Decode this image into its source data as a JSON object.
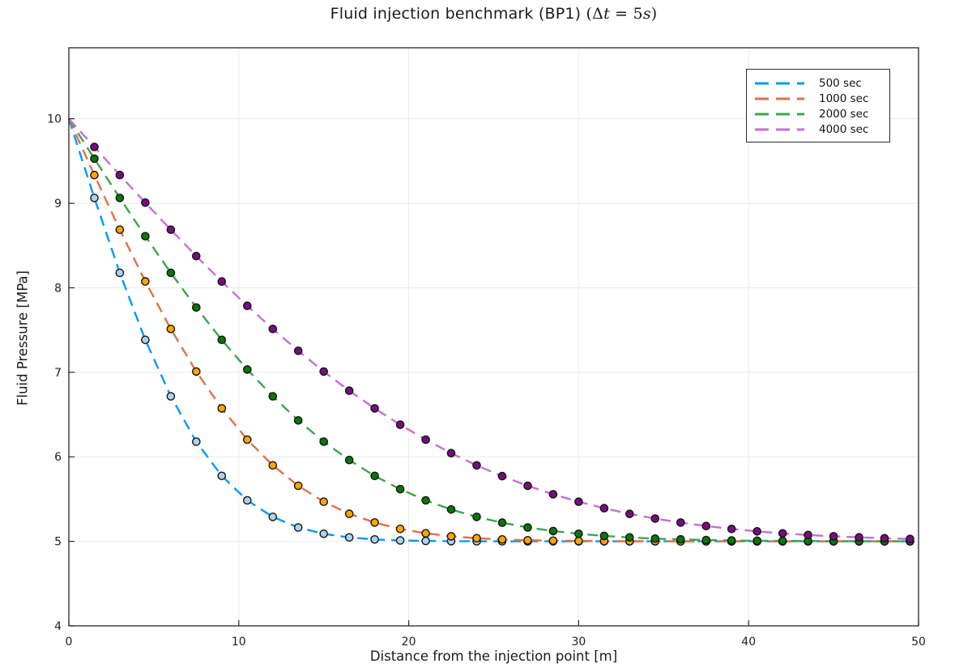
{
  "title": {
    "main": "Fluid injection benchmark (BP1) ",
    "math_parts": [
      "(Δ",
      "t",
      " = 5",
      "s",
      ")"
    ]
  },
  "axes": {
    "xlabel": "Distance from the injection point [m]",
    "ylabel": "Fluid Pressure [MPa]"
  },
  "chart_data": {
    "type": "line",
    "title": "Fluid injection benchmark (BP1) (Δt = 5s)",
    "xlabel": "Distance from the injection point [m]",
    "ylabel": "Fluid Pressure [MPa]",
    "xlim": [
      0,
      50
    ],
    "ylim": [
      4,
      10.84
    ],
    "x_ticks": [
      0,
      10,
      20,
      30,
      40,
      50
    ],
    "y_ticks": [
      4,
      5,
      6,
      7,
      8,
      9,
      10
    ],
    "grid": true,
    "legend_position": "top-right",
    "line_style": "dashed",
    "marker": "circle",
    "x": [
      0,
      1.5,
      3,
      4.5,
      6,
      7.5,
      9,
      10.5,
      12,
      13.5,
      15,
      16.5,
      18,
      19.5,
      21,
      22.5,
      24,
      25.5,
      27,
      28.5,
      30,
      31.5,
      33,
      34.5,
      36,
      37.5,
      39,
      40.5,
      42,
      43.5,
      45,
      46.5,
      48,
      49.5
    ],
    "series": [
      {
        "name": "500 sec",
        "line_color": "#009AFA",
        "marker_color": "#A9D3F0",
        "values": [
          10,
          9.063,
          8.177,
          7.384,
          6.716,
          6.179,
          5.774,
          5.485,
          5.289,
          5.164,
          5.089,
          5.046,
          5.022,
          5.011,
          5.005,
          5.002,
          5.001,
          5.0,
          5.0,
          5.0,
          5.0,
          5.0,
          5.0,
          5.0,
          5.0,
          5.0,
          5.0,
          5.0,
          5.0,
          5.0,
          5.0,
          5.0,
          5.0,
          5.0
        ]
      },
      {
        "name": "1000 sec",
        "line_color": "#E36F47",
        "marker_color": "#FFA500",
        "values": [
          10,
          9.334,
          8.687,
          8.075,
          7.513,
          7.009,
          6.573,
          6.203,
          5.899,
          5.657,
          5.469,
          5.326,
          5.222,
          5.147,
          5.095,
          5.06,
          5.037,
          5.022,
          5.013,
          5.008,
          5.004,
          5.002,
          5.001,
          5.001,
          5.0,
          5.0,
          5.0,
          5.0,
          5.0,
          5.0,
          5.0,
          5.0,
          5.0,
          5.0
        ]
      },
      {
        "name": "2000 sec",
        "line_color": "#3DA44E",
        "marker_color": "#077807",
        "values": [
          10,
          9.528,
          9.063,
          8.61,
          8.177,
          7.767,
          7.384,
          7.033,
          6.716,
          6.43,
          6.179,
          5.962,
          5.774,
          5.617,
          5.485,
          5.377,
          5.289,
          5.22,
          5.164,
          5.122,
          5.089,
          5.064,
          5.046,
          5.032,
          5.023,
          5.015,
          5.011,
          5.007,
          5.005,
          5.003,
          5.002,
          5.001,
          5.001,
          5.0
        ]
      },
      {
        "name": "4000 sec",
        "line_color": "#C371D2",
        "marker_color": "#770D80",
        "values": [
          10,
          9.666,
          9.334,
          9.007,
          8.687,
          8.375,
          8.074,
          7.787,
          7.513,
          7.254,
          7.009,
          6.782,
          6.573,
          6.38,
          6.203,
          6.043,
          5.899,
          5.771,
          5.657,
          5.557,
          5.469,
          5.392,
          5.325,
          5.269,
          5.222,
          5.181,
          5.147,
          5.118,
          5.094,
          5.075,
          5.06,
          5.047,
          5.037,
          5.028
        ]
      }
    ]
  },
  "style": {
    "grid_color": "#ebebeb",
    "spine_color": "#262626",
    "tick_label_color": "#1f1f1f",
    "marker_edge_color": "#151515",
    "background": "#ffffff"
  }
}
